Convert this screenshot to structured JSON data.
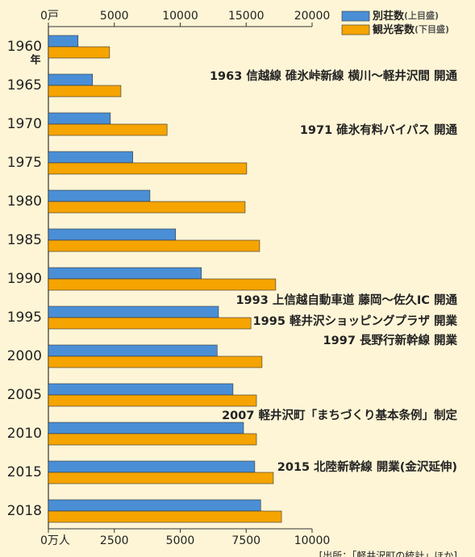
{
  "chart_data": {
    "type": "bar",
    "orientation": "horizontal",
    "categories": [
      "1960",
      "1965",
      "1970",
      "1975",
      "1980",
      "1985",
      "1990",
      "1995",
      "2000",
      "2005",
      "2010",
      "2015",
      "2018"
    ],
    "year_unit": "年",
    "series": [
      {
        "name": "別荘数",
        "axis_label": "(上目盛)",
        "color": "#4a8fd6",
        "axis": "x",
        "values": [
          2250,
          3350,
          4700,
          6400,
          7700,
          9650,
          11600,
          12900,
          12800,
          14000,
          14800,
          15650,
          16100
        ]
      },
      {
        "name": "観光客数",
        "axis_label": "(下目盛)",
        "color": "#f5a400",
        "axis": "x2",
        "values": [
          2320,
          2750,
          4500,
          7520,
          7460,
          8010,
          8620,
          7680,
          8100,
          7890,
          7890,
          8530,
          8840
        ]
      }
    ],
    "xlim": [
      0,
      20000
    ],
    "xticks": [
      {
        "value": 0,
        "label": "0戸"
      },
      5000,
      10000,
      15000,
      20000
    ],
    "x2lim": [
      0,
      10000
    ],
    "x2ticks": [
      {
        "value": 0,
        "label": "0万人"
      },
      2500,
      5000,
      7500,
      10000
    ],
    "annotations": [
      "1963 信越線 碓氷峠新線  横川～軽井沢間 開通",
      "1971 碓氷有料バイパス 開通",
      "1993 上信越自動車道 藤岡～佐久IC 開通",
      "1995 軽井沢ショッピングプラザ 開業",
      "1997 長野行新幹線 開業",
      "2007 軽井沢町「まちづくり基本条例」制定",
      "2015 北陸新幹線 開業(金沢延伸)"
    ],
    "source": "[出所：「軽井沢町の統計」ほか]"
  }
}
